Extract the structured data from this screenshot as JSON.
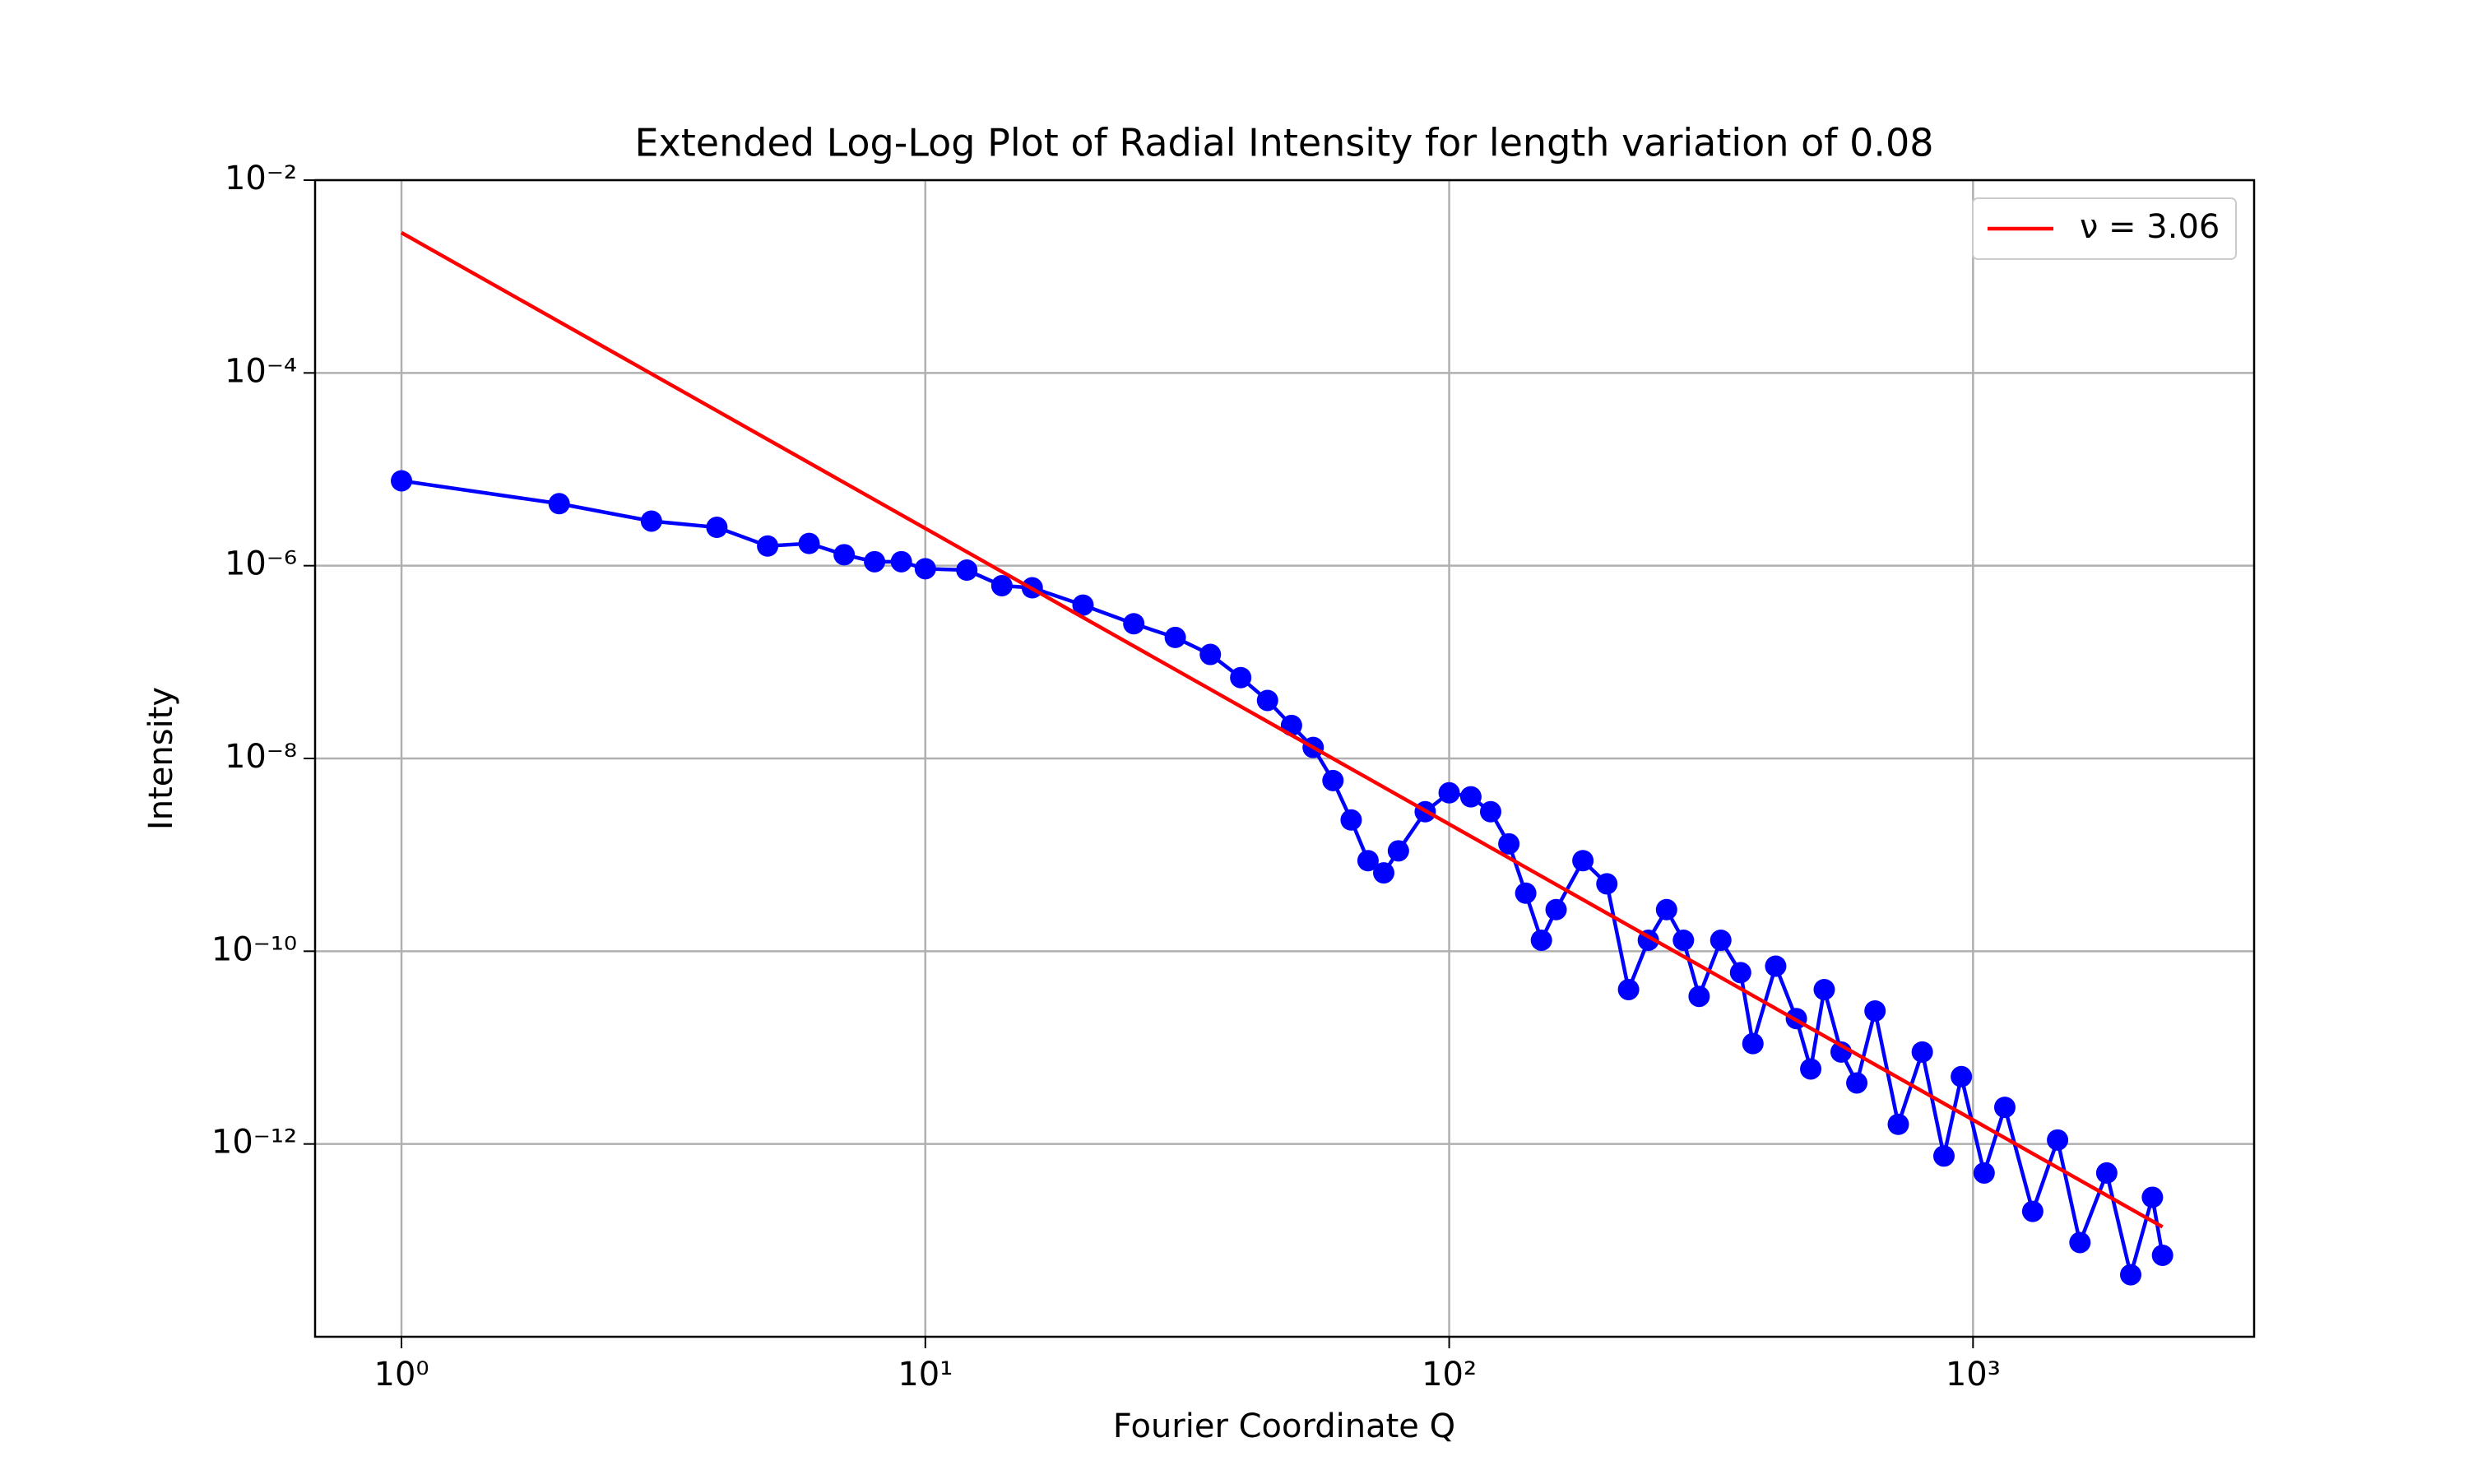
{
  "chart_data": {
    "type": "line",
    "title": "Extended Log-Log Plot of Radial Intensity for length variation of 0.08",
    "xlabel": "Fourier Coordinate Q",
    "ylabel": "Intensity",
    "xscale": "log",
    "yscale": "log",
    "xlim": [
      0.684,
      3440
    ],
    "ylim": [
      1e-14,
      0.01
    ],
    "xticks": [
      {
        "value": 1,
        "label": "10⁰"
      },
      {
        "value": 10,
        "label": "10¹"
      },
      {
        "value": 100,
        "label": "10²"
      },
      {
        "value": 1000,
        "label": "10³"
      }
    ],
    "yticks": [
      {
        "value": 1e-12,
        "label": "10⁻¹²"
      },
      {
        "value": 1e-10,
        "label": "10⁻¹⁰"
      },
      {
        "value": 1e-08,
        "label": "10⁻⁸"
      },
      {
        "value": 1e-06,
        "label": "10⁻⁶"
      },
      {
        "value": 0.0001,
        "label": "10⁻⁴"
      },
      {
        "value": 0.01,
        "label": "10⁻²"
      }
    ],
    "grid": true,
    "legend": "upper right",
    "series": [
      {
        "color": "#0000ff",
        "marker": "o",
        "x": [
          1,
          2,
          3,
          4,
          5,
          6,
          7,
          8,
          9,
          10,
          12,
          14,
          16,
          20,
          25,
          30,
          35,
          40,
          45,
          50,
          55,
          60,
          65,
          70,
          75,
          80,
          90,
          100,
          110,
          120,
          130,
          140,
          150,
          160,
          180,
          200,
          220,
          240,
          260,
          280,
          300,
          330,
          360,
          380,
          420,
          460,
          490,
          520,
          560,
          600,
          650,
          720,
          800,
          880,
          950,
          1050,
          1150,
          1300,
          1450,
          1600,
          1800,
          2000,
          2200,
          2300
        ],
        "values": [
          7.6e-06,
          4.4e-06,
          2.9e-06,
          2.5e-06,
          1.6e-06,
          1.7e-06,
          1.3e-06,
          1.1e-06,
          1.1e-06,
          9.3e-07,
          9e-07,
          6.2e-07,
          5.9e-07,
          3.9e-07,
          2.5e-07,
          1.8e-07,
          1.2e-07,
          6.9e-08,
          4e-08,
          2.2e-08,
          1.3e-08,
          5.9e-09,
          2.3e-09,
          8.7e-10,
          6.5e-10,
          1.1e-09,
          2.8e-09,
          4.4e-09,
          4e-09,
          2.8e-09,
          1.3e-09,
          4e-10,
          1.3e-10,
          2.7e-10,
          8.7e-10,
          5e-10,
          4e-11,
          1.3e-10,
          2.7e-10,
          1.3e-10,
          3.4e-11,
          1.3e-10,
          6e-11,
          1.1e-11,
          7e-11,
          2e-11,
          6e-12,
          4e-11,
          9e-12,
          4.3e-12,
          2.4e-11,
          1.6e-12,
          9e-12,
          7.5e-13,
          5e-12,
          5e-13,
          2.4e-12,
          2e-13,
          1.1e-12,
          9.5e-14,
          5e-13,
          4.4e-14,
          2.8e-13,
          7e-14
        ]
      },
      {
        "name": "ν = 3.06",
        "color": "#ff0000",
        "x": [
          1,
          2300
        ],
        "values": [
          0.00285,
          1.38e-13
        ]
      }
    ]
  }
}
